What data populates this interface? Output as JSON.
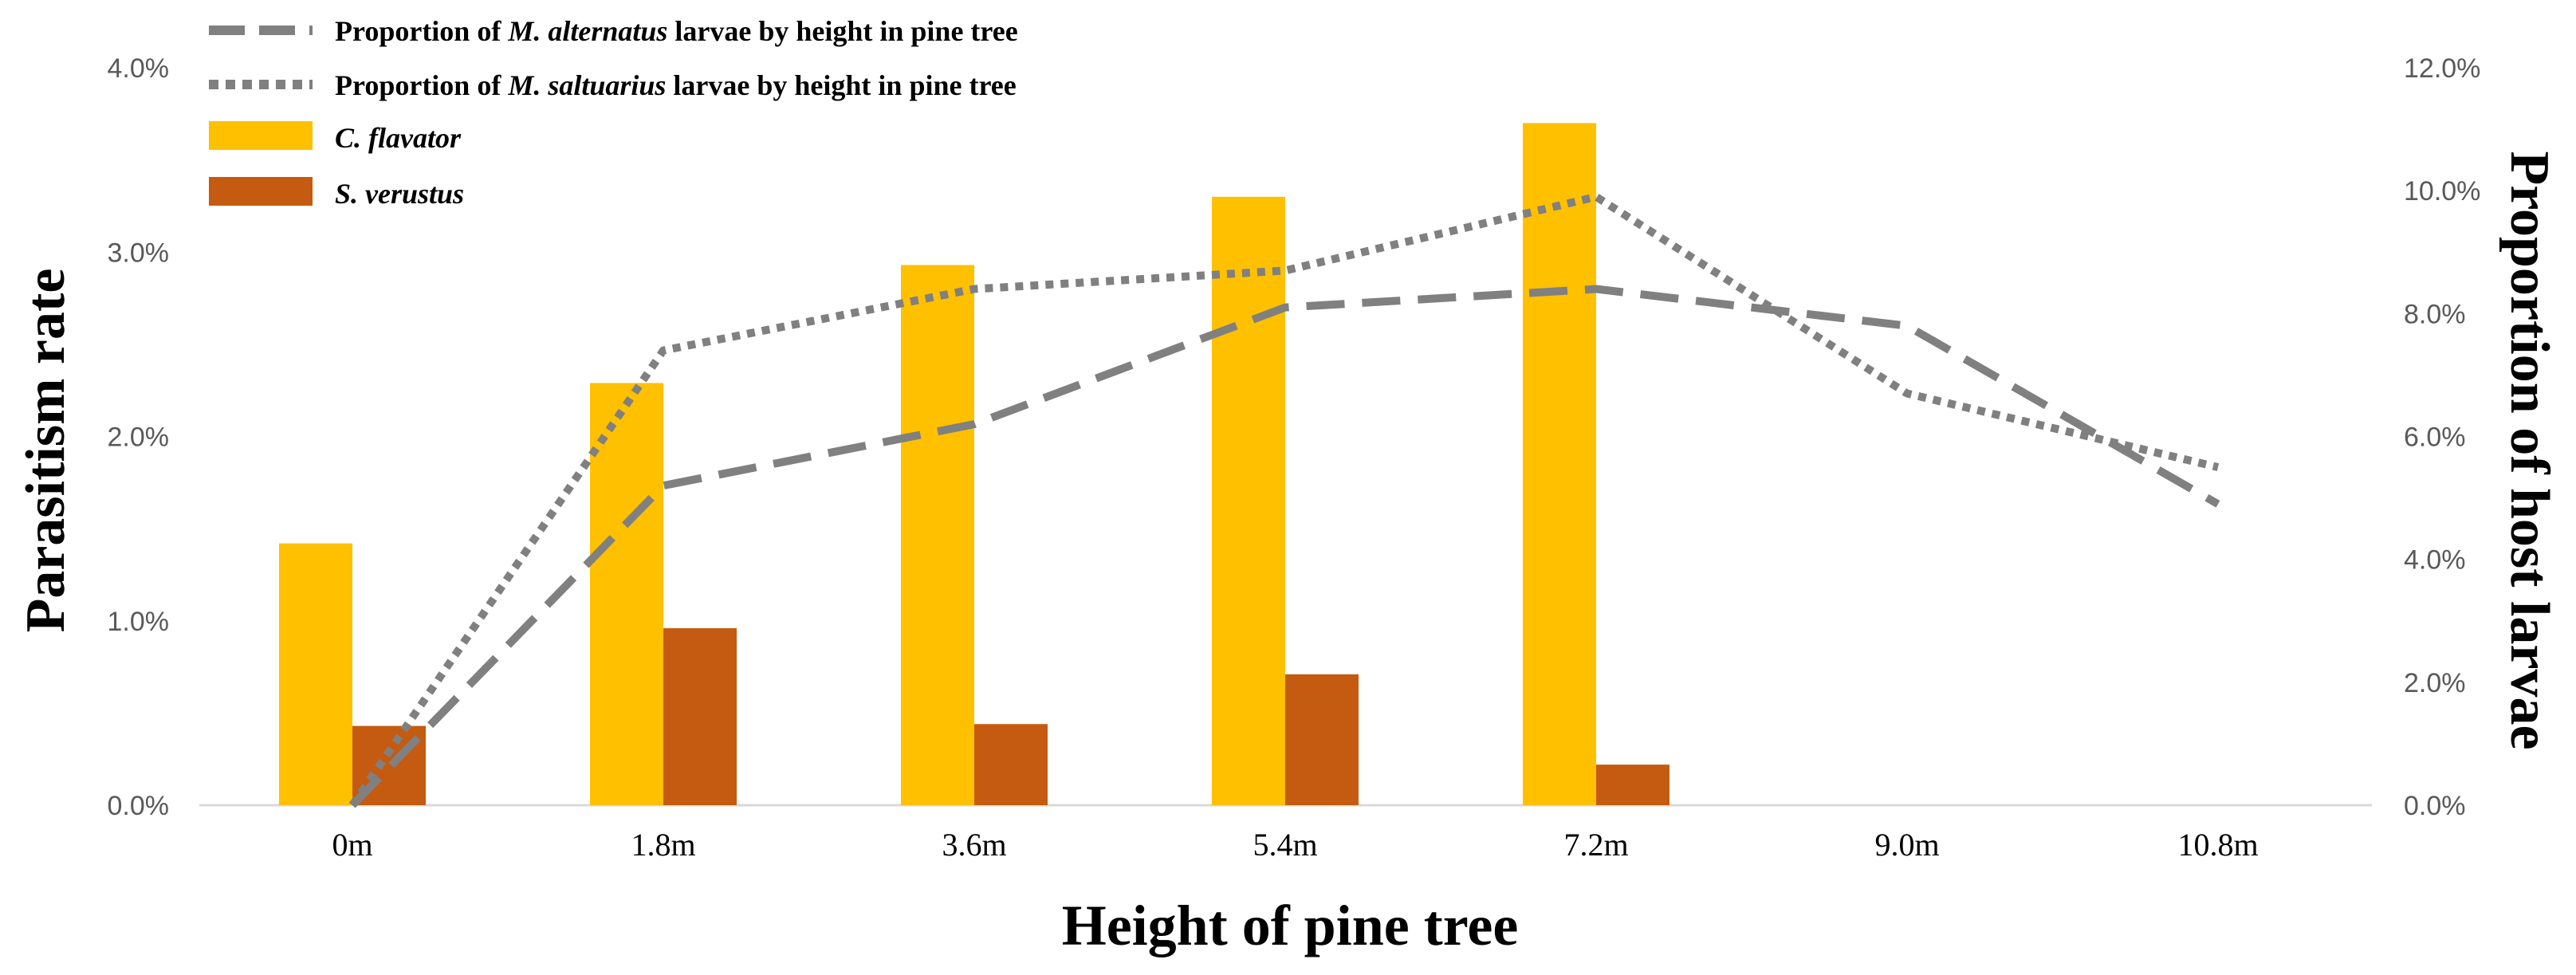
{
  "chart_data": {
    "type": "bar",
    "categories": [
      "0m",
      "1.8m",
      "3.6m",
      "5.4m",
      "7.2m",
      "9.0m",
      "10.8m"
    ],
    "xlabel": "Height of pine tree",
    "ylabel": "Parasitism rate",
    "y2label": "Proportion of host larvae",
    "ylim": [
      0,
      4.0
    ],
    "y2lim": [
      0,
      12.0
    ],
    "yticks": [
      "0.0%",
      "1.0%",
      "2.0%",
      "3.0%",
      "4.0%"
    ],
    "y2ticks": [
      "0.0%",
      "2.0%",
      "4.0%",
      "6.0%",
      "8.0%",
      "10.0%",
      "12.0%"
    ],
    "grid": false,
    "legend_position": "top-left",
    "series": [
      {
        "name": "C. flavator",
        "type": "bar",
        "axis": "left",
        "color": "#FFC000",
        "values": [
          1.42,
          2.29,
          2.93,
          3.3,
          3.7,
          null,
          null
        ]
      },
      {
        "name": "S. verustus",
        "type": "bar",
        "axis": "left",
        "color": "#C55A11",
        "values": [
          0.43,
          0.96,
          0.44,
          0.71,
          0.22,
          null,
          null
        ]
      },
      {
        "name": "Proportion of M. alternatus larvae by height in pine tree",
        "type": "line",
        "style": "dashed",
        "axis": "right",
        "color": "#808080",
        "values": [
          0.0,
          5.2,
          6.2,
          8.1,
          8.4,
          7.8,
          4.9
        ]
      },
      {
        "name": "Proportion of M. saltuarius larvae by height in pine tree",
        "type": "line",
        "style": "dotted",
        "axis": "right",
        "color": "#808080",
        "values": [
          0.0,
          7.4,
          8.4,
          8.7,
          9.9,
          6.7,
          5.5
        ]
      }
    ]
  },
  "legend": {
    "alternatus": {
      "pre": "Proportion of ",
      "species": "M. alternatus",
      "post": " larvae by height in pine tree"
    },
    "saltuarius": {
      "pre": "Proportion of ",
      "species": "M. saltuarius",
      "post": " larvae by height in pine tree"
    },
    "flavator": "C. flavator",
    "verustus": "S. verustus"
  }
}
